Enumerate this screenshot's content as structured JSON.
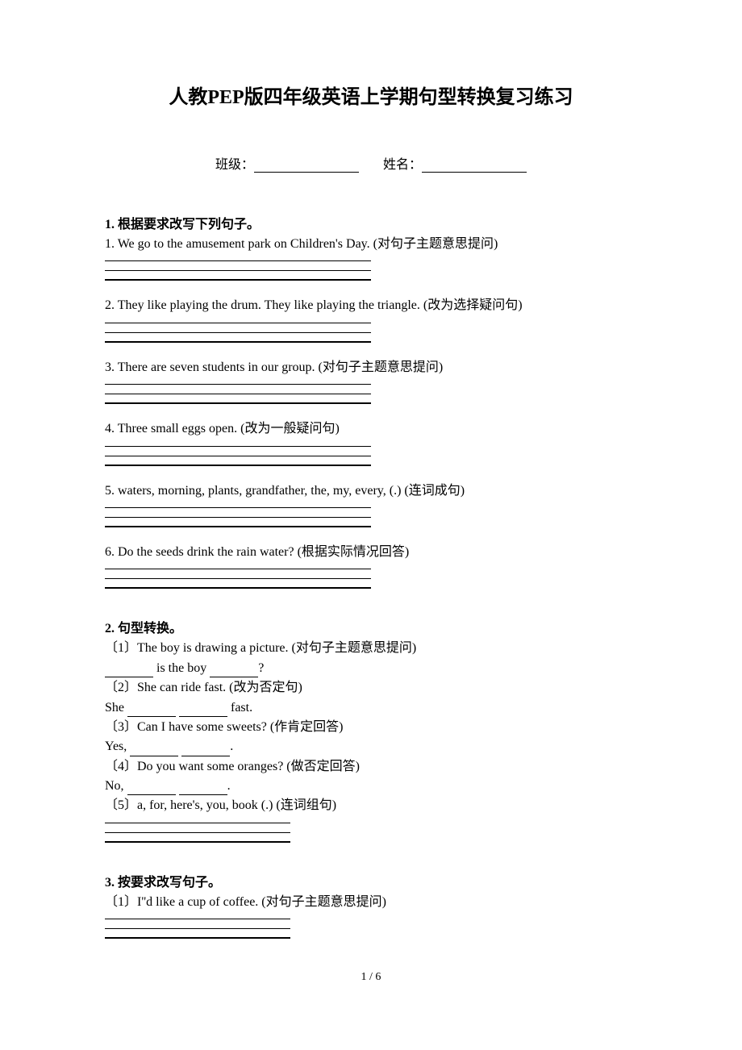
{
  "title": "人教PEP版四年级英语上学期句型转换复习练习",
  "header": {
    "class_label": "班级：",
    "name_label": "姓名："
  },
  "section1": {
    "header": "1.   根据要求改写下列句子。",
    "q1": "1. We go to the amusement park on Children's Day. (对句子主题意思提问)",
    "q2": "2. They like playing the drum. They like playing the triangle. (改为选择疑问句)",
    "q3": "3. There are seven students in our group. (对句子主题意思提问)",
    "q4": "4. Three small eggs open. (改为一般疑问句)",
    "q5": "5. waters, morning, plants, grandfather, the, my, every, (.) (连词成句)",
    "q6": "6. Do the seeds drink the rain water? (根据实际情况回答)"
  },
  "section2": {
    "header": "2.   句型转换。",
    "q1": "〔1〕The boy is drawing a picture. (对句子主题意思提问)",
    "q1_line_a": " is the boy ",
    "q1_line_b": "?",
    "q2": "〔2〕She can ride fast. (改为否定句)",
    "q2_line_a": "She ",
    "q2_line_b": " fast.",
    "q3": "〔3〕Can I have some sweets? (作肯定回答)",
    "q3_line_a": "Yes, ",
    "q3_line_b": ".",
    "q4": "〔4〕Do you want some oranges? (做否定回答)",
    "q4_line_a": "No, ",
    "q4_line_b": ".",
    "q5": "〔5〕a, for, here's, you, book (.) (连词组句)"
  },
  "section3": {
    "header": "3.   按要求改写句子。",
    "q1": "〔1〕I''d like a cup of coffee. (对句子主题意思提问)"
  },
  "page_num": "1 / 6"
}
